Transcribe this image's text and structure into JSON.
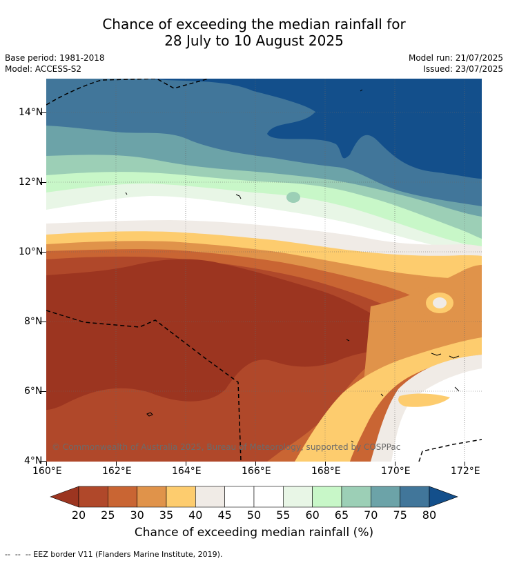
{
  "title_line1": "Chance of exceeding the median rainfall for",
  "title_line2": "28 July to 10 August 2025",
  "base_period": "Base period: 1981-2018",
  "model": "Model: ACCESS-S2",
  "model_run": "Model run: 21/07/2025",
  "issued": "Issued: 23/07/2025",
  "copyright": "© Commonwealth of Australia 2025, Bureau of Meteorology, supported by COSPPac",
  "lat_labels": [
    "14°N",
    "12°N",
    "10°N",
    "8°N",
    "6°N",
    "4°N"
  ],
  "lon_labels": [
    "160°E",
    "162°E",
    "164°E",
    "166°E",
    "168°E",
    "170°E",
    "172°E"
  ],
  "colorbar": {
    "title": "Chance of exceeding median rainfall (%)",
    "ticks": [
      "20",
      "25",
      "30",
      "35",
      "40",
      "45",
      "50",
      "55",
      "60",
      "65",
      "70",
      "75",
      "80"
    ],
    "colors": [
      "#9c3520",
      "#b0482a",
      "#c96533",
      "#e0934a",
      "#fdcc6e",
      "#f0ebe6",
      "#ffffff",
      "#ffffff",
      "#e8f6e6",
      "#c8f7c8",
      "#9ccfb6",
      "#6ca3a8",
      "#41769a",
      "#134f8b"
    ]
  },
  "footnote": "--  --  -- EEZ border V11 (Flanders Marine Institute, 2019)."
}
